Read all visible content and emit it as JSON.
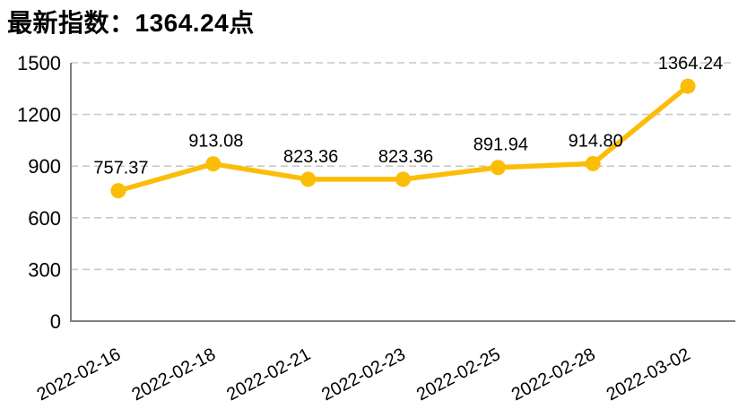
{
  "title": "最新指数：1364.24点",
  "colors": {
    "line": "#FBBD08",
    "grid": "#C9C9C9",
    "axis": "#808080",
    "text": "#000000",
    "background": "#FFFFFF"
  },
  "chart_data": {
    "type": "line",
    "title": "最新指数：1364.24点",
    "categories": [
      "2022-02-16",
      "2022-02-18",
      "2022-02-21",
      "2022-02-23",
      "2022-02-25",
      "2022-02-28",
      "2022-03-02"
    ],
    "values": [
      757.37,
      913.08,
      823.36,
      823.36,
      891.94,
      914.8,
      1364.24
    ],
    "value_labels": [
      "757.37",
      "913.08",
      "823.36",
      "823.36",
      "891.94",
      "914.80",
      "1364.24"
    ],
    "xlabel": "",
    "ylabel": "",
    "ylim": [
      0,
      1500
    ],
    "yticks": [
      0,
      300,
      600,
      900,
      1200,
      1500
    ],
    "grid": "dashed-horizontal",
    "legend": "none",
    "x_label_rotation_deg": -28,
    "marker": "circle"
  }
}
